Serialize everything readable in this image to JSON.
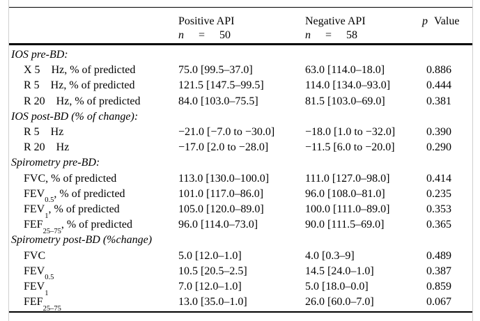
{
  "table": {
    "header": {
      "positive": {
        "title": "Positive API",
        "n": "n",
        "eq": "=",
        "count": "50"
      },
      "negative": {
        "title": "Negative API",
        "n": "n",
        "eq": "=",
        "count": "58"
      },
      "pvalue": {
        "italic": "p",
        "rest": "Value"
      }
    },
    "rows": [
      {
        "type": "section",
        "label": "IOS pre-BD:"
      },
      {
        "type": "data",
        "pre": "X 5 ",
        "sub": "",
        "post": "Hz, % of predicted",
        "pos": "75.0 [99.5–37.0]",
        "neg": "63.0 [114.0–18.0]",
        "p": "0.886"
      },
      {
        "type": "data",
        "pre": "R 5 ",
        "sub": "",
        "post": "Hz, % of predicted",
        "pos": "121.5 [147.5–99.5]",
        "neg": "114.0 [134.0–93.0]",
        "p": "0.444"
      },
      {
        "type": "data",
        "pre": "R 20 ",
        "sub": "",
        "post": "Hz, % of predicted",
        "pos": "84.0 [103.0–75.5]",
        "neg": "81.5 [103.0–69.0]",
        "p": "0.381"
      },
      {
        "type": "section",
        "label": "IOS post-BD (% of change):"
      },
      {
        "type": "data",
        "pre": "R 5 ",
        "sub": "",
        "post": "Hz",
        "pos": "−21.0 [−7.0 to −30.0]",
        "neg": "−18.0 [1.0 to −32.0]",
        "p": "0.390"
      },
      {
        "type": "data",
        "pre": "R 20 ",
        "sub": "",
        "post": "Hz",
        "pos": "−17.0 [2.0 to −28.0]",
        "neg": "−11.5 [6.0 to −20.0]",
        "p": "0.290"
      },
      {
        "type": "section",
        "label": "Spirometry pre-BD:"
      },
      {
        "type": "data",
        "pre": "FVC, % of predicted",
        "sub": "",
        "post": "",
        "pos": "113.0 [130.0–100.0]",
        "neg": "111.0 [127.0–98.0]",
        "p": "0.414"
      },
      {
        "type": "data",
        "pre": "FEV",
        "sub": "0.5",
        "post": ", % of predicted",
        "pos": "101.0 [117.0–86.0]",
        "neg": "96.0 [108.0–81.0]",
        "p": "0.235"
      },
      {
        "type": "data",
        "pre": "FEV",
        "sub": "1",
        "post": ", % of predicted",
        "pos": "105.0 [120.0–89.0]",
        "neg": "100.0 [111.0–89.0]",
        "p": "0.353"
      },
      {
        "type": "data",
        "pre": "FEF",
        "sub": "25–75",
        "post": ", % of predicted",
        "pos": "96.0 [114.0–73.0]",
        "neg": "90.0 [111.5–69.0]",
        "p": "0.365"
      },
      {
        "type": "section",
        "label": "Spirometry post-BD (%change)"
      },
      {
        "type": "data",
        "pre": "FVC",
        "sub": "",
        "post": "",
        "pos": "5.0 [12.0–1.0]",
        "neg": "4.0 [0.3–9]",
        "p": "0.489"
      },
      {
        "type": "data",
        "pre": "FEV",
        "sub": "0.5",
        "post": "",
        "pos": "10.5 [20.5–2.5]",
        "neg": "14.5 [24.0–1.0]",
        "p": "0.387"
      },
      {
        "type": "data",
        "pre": "FEV",
        "sub": "1",
        "post": "",
        "pos": "7.0 [12.0–1.0]",
        "neg": "5.0 [18.0–0.0]",
        "p": "0.859"
      },
      {
        "type": "data",
        "pre": "FEF",
        "sub": "25–75",
        "post": "",
        "pos": "13.0 [35.0–1.0]",
        "neg": "26.0 [60.0–7.0]",
        "p": "0.067"
      }
    ]
  },
  "colors": {
    "text": "#000000",
    "rule": "#000000",
    "faint_edge": "#cfcfcf",
    "background": "#ffffff"
  }
}
